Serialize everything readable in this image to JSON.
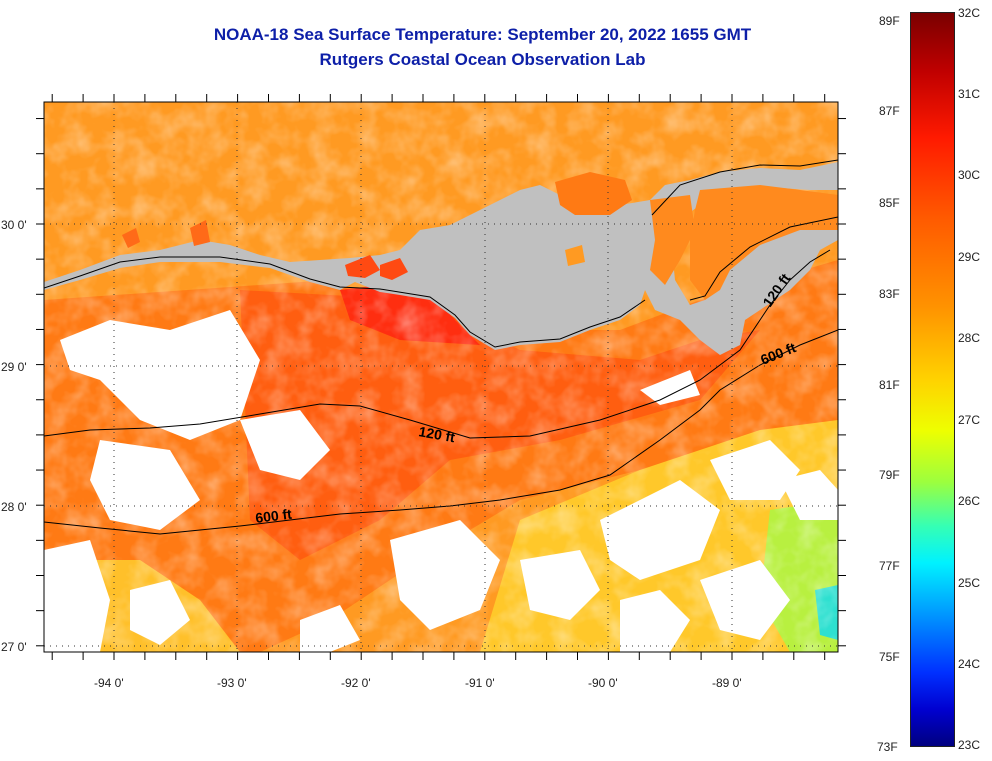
{
  "title": {
    "line1": "NOAA-18 Sea Surface Temperature:  September 20, 2022 1655 GMT",
    "line2": "Rutgers Coastal Ocean Observation Lab"
  },
  "map": {
    "lon_labels": [
      "-94 0'",
      "-93 0'",
      "-92 0'",
      "-91 0'",
      "-90 0'",
      "-89 0'"
    ],
    "lat_labels": [
      "30 0'",
      "29 0'",
      "28 0'",
      "27 0'"
    ],
    "contour_labels": {
      "upper_west": "120 ft",
      "upper_east": "120 ft",
      "lower_west": "600 ft",
      "lower_east": "600 ft"
    },
    "colors": {
      "land": "#c0c0c0",
      "cloud": "#ffffff",
      "sea_warm": "#ff6a10",
      "sea_mid": "#ff9a22",
      "sea_cool": "#ffcc22",
      "sea_cold": "#b8f040",
      "hot_spot": "#ff2e10"
    }
  },
  "colorbar": {
    "fahrenheit": [
      "89F",
      "87F",
      "85F",
      "83F",
      "81F",
      "79F",
      "77F",
      "75F",
      "73F"
    ],
    "celsius": [
      "32C",
      "31C",
      "30C",
      "29C",
      "28C",
      "27C",
      "26C",
      "25C",
      "24C",
      "23C"
    ]
  }
}
